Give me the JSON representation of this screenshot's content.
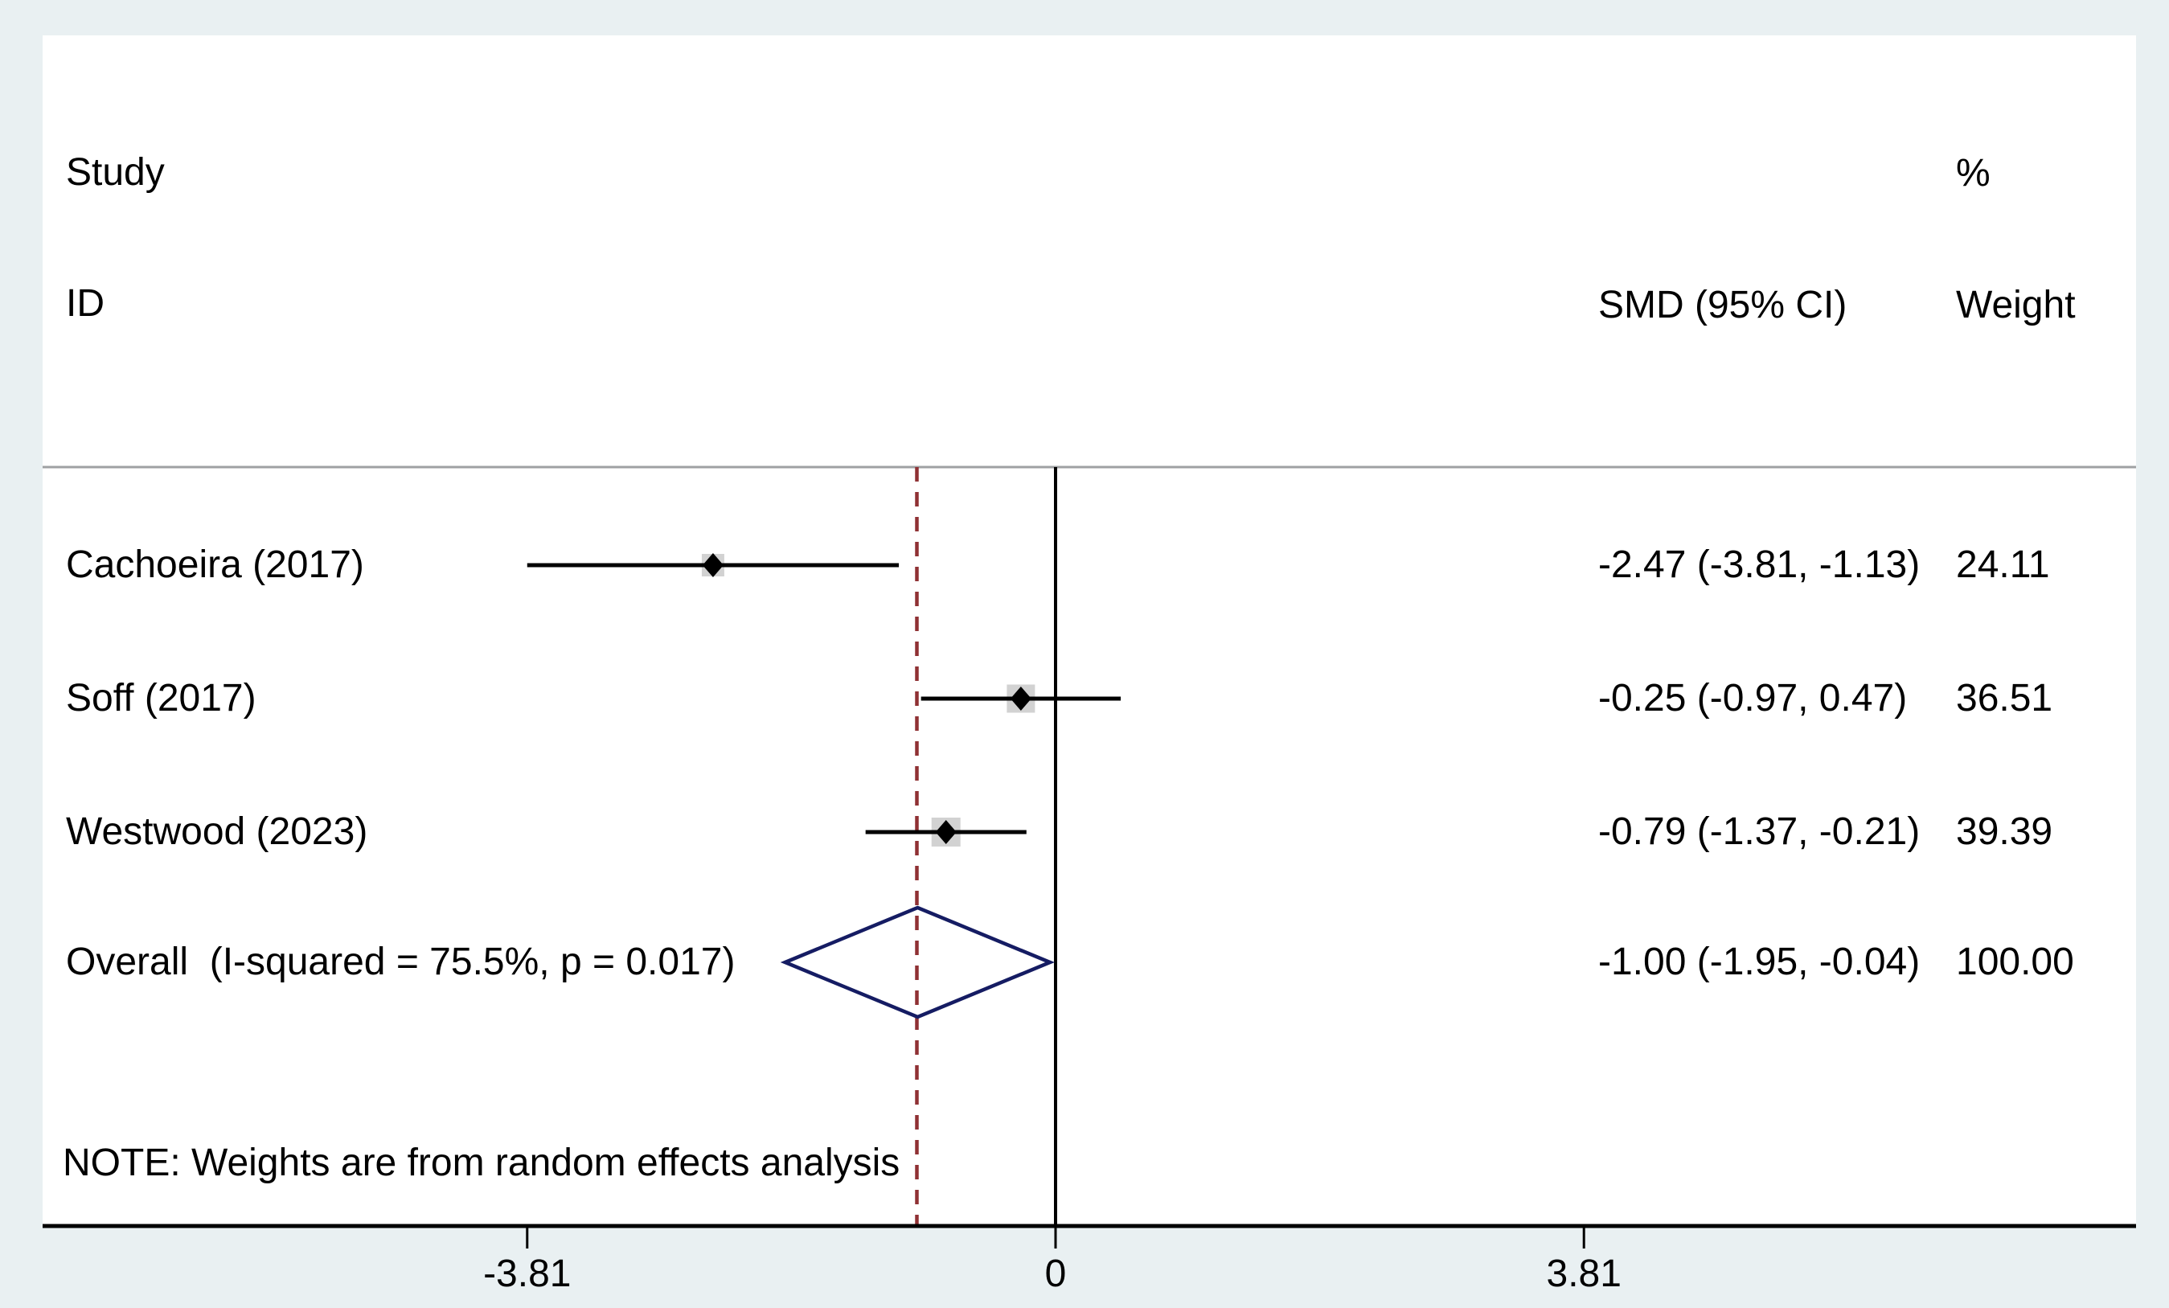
{
  "figure": {
    "background_color": "#e9f0f2",
    "plot_background_color": "#ffffff"
  },
  "header": {
    "study_line1": "Study",
    "study_line2": "ID",
    "percent": "%",
    "smd_column": "SMD (95% CI)",
    "weight_column": "Weight"
  },
  "note": "NOTE: Weights are from random effects analysis",
  "chart_data": {
    "type": "forest",
    "effect_measure": "SMD",
    "x_axis": {
      "tick_values": [
        -3.81,
        0,
        3.81
      ],
      "tick_labels": [
        "-3.81",
        "0",
        "3.81"
      ],
      "null_line_value": 0,
      "overall_dashed_line_value": -1.0
    },
    "studies": [
      {
        "id": "Cachoeira (2017)",
        "smd": -2.47,
        "ci_low": -3.81,
        "ci_high": -1.13,
        "weight": 24.11,
        "smd_text": "-2.47 (-3.81, -1.13)",
        "weight_text": "24.11"
      },
      {
        "id": "Soff (2017)",
        "smd": -0.25,
        "ci_low": -0.97,
        "ci_high": 0.47,
        "weight": 36.51,
        "smd_text": "-0.25 (-0.97, 0.47)",
        "weight_text": "36.51"
      },
      {
        "id": "Westwood (2023)",
        "smd": -0.79,
        "ci_low": -1.37,
        "ci_high": -0.21,
        "weight": 39.39,
        "smd_text": "-0.79 (-1.37, -0.21)",
        "weight_text": "39.39"
      }
    ],
    "overall": {
      "label": "Overall  (I-squared = 75.5%, p = 0.017)",
      "smd": -1.0,
      "ci_low": -1.95,
      "ci_high": -0.04,
      "weight": 100.0,
      "smd_text": "-1.00 (-1.95, -0.04)",
      "weight_text": "100.00"
    },
    "colors": {
      "ci_line": "#000000",
      "marker": "#000000",
      "weight_box": "#d2d2d2",
      "overall_diamond": "#151c63",
      "dashed_overall_line": "#8f3134",
      "null_line": "#000000",
      "axis_line": "#000000",
      "separator_line": "#9fa1a3",
      "text": "#000000"
    },
    "legend": null,
    "grid": false
  }
}
